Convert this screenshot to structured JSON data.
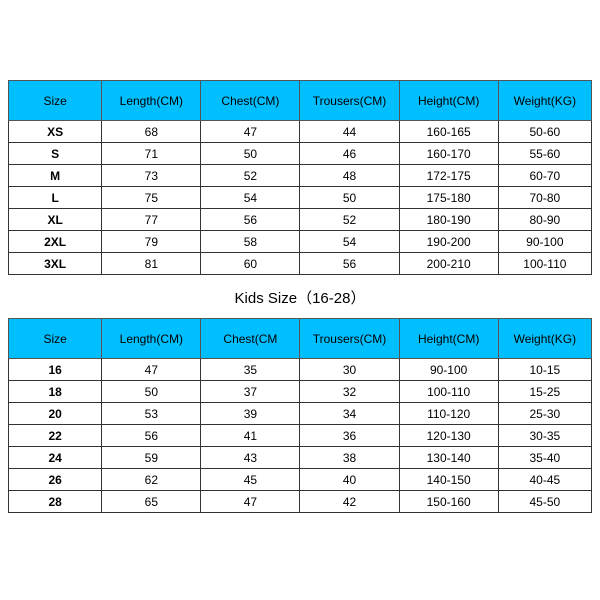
{
  "adult_table": {
    "columns": [
      "Size",
      "Length(CM)",
      "Chest(CM)",
      "Trousers(CM)",
      "Height(CM)",
      "Weight(KG)"
    ],
    "rows": [
      [
        "XS",
        "68",
        "47",
        "44",
        "160-165",
        "50-60"
      ],
      [
        "S",
        "71",
        "50",
        "46",
        "160-170",
        "55-60"
      ],
      [
        "M",
        "73",
        "52",
        "48",
        "172-175",
        "60-70"
      ],
      [
        "L",
        "75",
        "54",
        "50",
        "175-180",
        "70-80"
      ],
      [
        "XL",
        "77",
        "56",
        "52",
        "180-190",
        "80-90"
      ],
      [
        "2XL",
        "79",
        "58",
        "54",
        "190-200",
        "90-100"
      ],
      [
        "3XL",
        "81",
        "60",
        "56",
        "200-210",
        "100-110"
      ]
    ],
    "header_bg": "#00bfff",
    "col_widths": [
      "16%",
      "17%",
      "17%",
      "17%",
      "17%",
      "16%"
    ]
  },
  "kids_title": "Kids Size（16-28）",
  "kids_table": {
    "columns": [
      "Size",
      "Length(CM)",
      "Chest(CM",
      "Trousers(CM)",
      "Height(CM)",
      "Weight(KG)"
    ],
    "rows": [
      [
        "16",
        "47",
        "35",
        "30",
        "90-100",
        "10-15"
      ],
      [
        "18",
        "50",
        "37",
        "32",
        "100-110",
        "15-25"
      ],
      [
        "20",
        "53",
        "39",
        "34",
        "110-120",
        "25-30"
      ],
      [
        "22",
        "56",
        "41",
        "36",
        "120-130",
        "30-35"
      ],
      [
        "24",
        "59",
        "43",
        "38",
        "130-140",
        "35-40"
      ],
      [
        "26",
        "62",
        "45",
        "40",
        "140-150",
        "40-45"
      ],
      [
        "28",
        "65",
        "47",
        "42",
        "150-160",
        "45-50"
      ]
    ],
    "header_bg": "#00bfff",
    "col_widths": [
      "16%",
      "17%",
      "17%",
      "17%",
      "17%",
      "16%"
    ]
  }
}
